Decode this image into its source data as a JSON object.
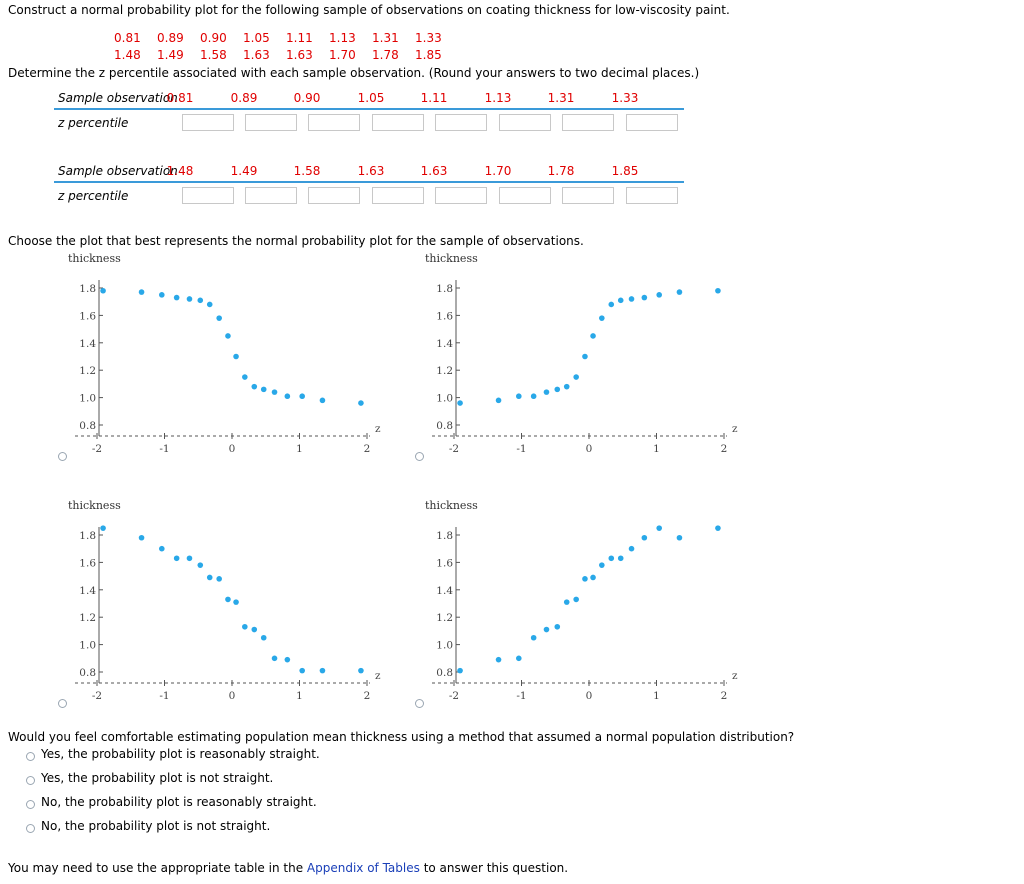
{
  "question": {
    "intro": "Construct a normal probability plot for the following sample of observations on coating thickness for low-viscosity paint.",
    "observations_row1": [
      "0.81",
      "0.89",
      "0.90",
      "1.05",
      "1.11",
      "1.13",
      "1.31",
      "1.33"
    ],
    "observations_row2": [
      "1.48",
      "1.49",
      "1.58",
      "1.63",
      "1.63",
      "1.70",
      "1.78",
      "1.85"
    ],
    "determine_text": "Determine the z percentile associated with each sample observation. (Round your answers to two decimal places.)"
  },
  "table1": {
    "header_label": "Sample observation",
    "row_label": "z percentile",
    "values": [
      "0.81",
      "0.89",
      "0.90",
      "1.05",
      "1.11",
      "1.13",
      "1.31",
      "1.33"
    ],
    "inputs": [
      "",
      "",
      "",
      "",
      "",
      "",
      "",
      ""
    ]
  },
  "table2": {
    "header_label": "Sample observation",
    "row_label": "z percentile",
    "values": [
      "1.48",
      "1.49",
      "1.58",
      "1.63",
      "1.63",
      "1.70",
      "1.78",
      "1.85"
    ],
    "inputs": [
      "",
      "",
      "",
      "",
      "",
      "",
      "",
      ""
    ]
  },
  "choose_text": "Choose the plot that best represents the normal probability plot for the sample of observations.",
  "plot_colors": {
    "point": "#29a8e8",
    "axis": "#555555"
  },
  "chart_data": [
    {
      "type": "scatter",
      "ylabel": "thickness",
      "xlabel": "z",
      "xlim": [
        -2,
        2
      ],
      "ylim": [
        0.8,
        1.8
      ],
      "xticks": [
        "-2",
        "-1",
        "0",
        "1",
        "2"
      ],
      "yticks": [
        "0.8",
        "1.0",
        "1.2",
        "1.4",
        "1.6",
        "1.8"
      ],
      "x": [
        -1.91,
        -1.34,
        -1.04,
        -0.82,
        -0.63,
        -0.47,
        -0.33,
        -0.19,
        -0.06,
        0.06,
        0.19,
        0.33,
        0.47,
        0.63,
        0.82,
        1.04,
        1.34,
        1.91
      ],
      "y": [
        1.78,
        1.77,
        1.75,
        1.73,
        1.72,
        1.71,
        1.68,
        1.58,
        1.45,
        1.3,
        1.15,
        1.08,
        1.06,
        1.04,
        1.01,
        1.01,
        0.98,
        0.96
      ]
    },
    {
      "type": "scatter",
      "ylabel": "thickness",
      "xlabel": "z",
      "xlim": [
        -2,
        2
      ],
      "ylim": [
        0.8,
        1.8
      ],
      "xticks": [
        "-2",
        "-1",
        "0",
        "1",
        "2"
      ],
      "yticks": [
        "0.8",
        "1.0",
        "1.2",
        "1.4",
        "1.6",
        "1.8"
      ],
      "x": [
        -1.91,
        -1.34,
        -1.04,
        -0.82,
        -0.63,
        -0.47,
        -0.33,
        -0.19,
        -0.06,
        0.06,
        0.19,
        0.33,
        0.47,
        0.63,
        0.82,
        1.04,
        1.34,
        1.91
      ],
      "y": [
        0.96,
        0.98,
        1.01,
        1.01,
        1.04,
        1.06,
        1.08,
        1.15,
        1.3,
        1.45,
        1.58,
        1.68,
        1.71,
        1.72,
        1.73,
        1.75,
        1.77,
        1.78
      ]
    },
    {
      "type": "scatter",
      "ylabel": "thickness",
      "xlabel": "z",
      "xlim": [
        -2,
        2
      ],
      "ylim": [
        0.8,
        1.8
      ],
      "xticks": [
        "-2",
        "-1",
        "0",
        "1",
        "2"
      ],
      "yticks": [
        "0.8",
        "1.0",
        "1.2",
        "1.4",
        "1.6",
        "1.8"
      ],
      "x": [
        -1.91,
        -1.34,
        -1.04,
        -0.82,
        -0.63,
        -0.47,
        -0.33,
        -0.19,
        -0.06,
        0.06,
        0.19,
        0.33,
        0.47,
        0.63,
        0.82,
        1.04,
        1.34,
        1.91
      ],
      "y": [
        1.85,
        1.78,
        1.7,
        1.63,
        1.63,
        1.58,
        1.49,
        1.48,
        1.33,
        1.31,
        1.13,
        1.11,
        1.05,
        0.9,
        0.89,
        0.81,
        0.81,
        0.81
      ]
    },
    {
      "type": "scatter",
      "ylabel": "thickness",
      "xlabel": "z",
      "xlim": [
        -2,
        2
      ],
      "ylim": [
        0.8,
        1.8
      ],
      "xticks": [
        "-2",
        "-1",
        "0",
        "1",
        "2"
      ],
      "yticks": [
        "0.8",
        "1.0",
        "1.2",
        "1.4",
        "1.6",
        "1.8"
      ],
      "x": [
        -1.91,
        -1.34,
        -1.04,
        -0.82,
        -0.63,
        -0.47,
        -0.33,
        -0.19,
        -0.06,
        0.06,
        0.19,
        0.33,
        0.47,
        0.63,
        0.82,
        1.04,
        1.34,
        1.91
      ],
      "y": [
        0.81,
        0.89,
        0.9,
        1.05,
        1.11,
        1.13,
        1.31,
        1.33,
        1.48,
        1.49,
        1.58,
        1.63,
        1.63,
        1.7,
        1.78,
        1.85,
        1.78,
        1.85
      ]
    }
  ],
  "followup": {
    "question": "Would you feel comfortable estimating population mean thickness using a method that assumed a normal population distribution?",
    "options": [
      "Yes, the probability plot is reasonably straight.",
      "Yes, the probability plot is not straight.",
      "No, the probability plot is reasonably straight.",
      "No, the probability plot is not straight."
    ]
  },
  "footer": {
    "prefix": "You may need to use the appropriate table in the ",
    "link": "Appendix of Tables",
    "suffix": " to answer this question."
  }
}
